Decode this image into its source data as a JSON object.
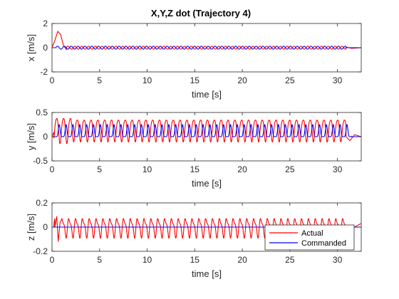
{
  "figure_title": "X,Y,Z dot (Trajectory 4)",
  "colors": {
    "actual": "#ff0000",
    "commanded": "#0000ff",
    "axis": "#262626"
  },
  "legend": {
    "placement": "bottom-right (third subplot)",
    "entries": [
      "Actual",
      "Commanded"
    ]
  },
  "chart_data": [
    {
      "type": "line",
      "title": "X,Y,Z dot (Trajectory 4)",
      "xlabel": "time [s]",
      "ylabel": "x [m/s]",
      "xlim": [
        0,
        32.5
      ],
      "ylim": [
        -2,
        2
      ],
      "xticks": [
        0,
        5,
        10,
        15,
        20,
        25,
        30
      ],
      "yticks": [
        -2,
        0,
        2
      ],
      "grid": false,
      "series": [
        {
          "name": "Actual",
          "color": "#ff0000",
          "description_points": {
            "t": [
              0,
              0.3,
              0.6,
              0.9,
              1.2,
              1.5,
              2.0,
              3.0,
              30.9,
              31.5,
              32.5
            ],
            "v": [
              0,
              0.6,
              1.35,
              1.1,
              0.2,
              -0.15,
              0.1,
              0.1,
              0.1,
              -0.05,
              0
            ]
          },
          "oscillation": {
            "period_s": 0.72,
            "amplitude": 0.12,
            "start_s": 1.5,
            "end_s": 30.9
          }
        },
        {
          "name": "Commanded",
          "color": "#0000ff",
          "oscillation": {
            "period_s": 0.72,
            "amplitude": 0.12,
            "start_s": 0.4,
            "end_s": 30.9
          }
        }
      ]
    },
    {
      "type": "line",
      "xlabel": "time [s]",
      "ylabel": "y [m/s]",
      "xlim": [
        0,
        32.5
      ],
      "ylim": [
        -0.5,
        0.5
      ],
      "xticks": [
        0,
        5,
        10,
        15,
        20,
        25,
        30
      ],
      "yticks": [
        -0.5,
        0,
        0.5
      ],
      "grid": false,
      "series": [
        {
          "name": "Actual",
          "color": "#ff0000",
          "oscillation": {
            "period_s": 0.72,
            "max": 0.35,
            "min": -0.1,
            "start_s": 0.2,
            "end_s": 30.9
          },
          "tail": {
            "t": [
              30.9,
              31.3,
              31.8,
              32.5
            ],
            "v": [
              0.0,
              -0.08,
              0.04,
              0.0
            ]
          }
        },
        {
          "name": "Commanded",
          "color": "#0000ff",
          "oscillation": {
            "period_s": 0.72,
            "max": 0.25,
            "min": 0.0,
            "start_s": 0.4,
            "end_s": 31.5
          }
        }
      ]
    },
    {
      "type": "line",
      "xlabel": "time [s]",
      "ylabel": "z [m/s]",
      "xlim": [
        0,
        32.5
      ],
      "ylim": [
        -0.2,
        0.2
      ],
      "xticks": [
        0,
        5,
        10,
        15,
        20,
        25,
        30
      ],
      "yticks": [
        -0.2,
        0,
        0.2
      ],
      "grid": false,
      "series": [
        {
          "name": "Actual",
          "color": "#ff0000",
          "oscillation": {
            "period_s": 0.72,
            "max": 0.09,
            "min": -0.08,
            "start_s": 0.2,
            "end_s": 30.9
          },
          "notes": "peak near t=0.6 ~ -0.12"
        },
        {
          "name": "Commanded",
          "color": "#0000ff",
          "constant": 0.0
        }
      ]
    }
  ]
}
